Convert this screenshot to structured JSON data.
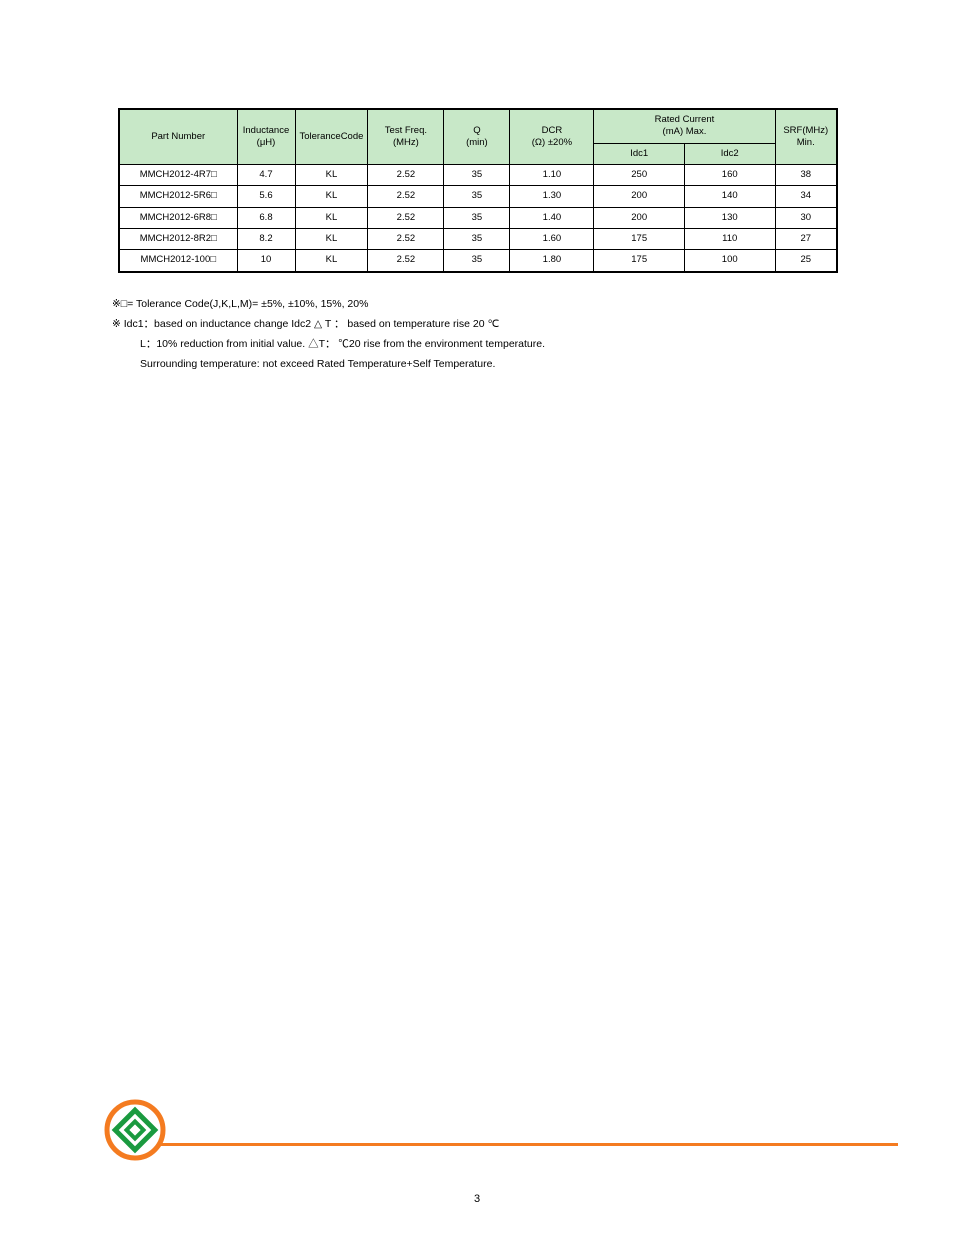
{
  "table": {
    "header": {
      "c0": "Part Number",
      "c1": "Inductance\n(μH)",
      "c2": "ToleranceCode",
      "c3": "Test Freq.\n(MHz)",
      "c4": "Q\n(min)",
      "c5": "DCR\n(Ω) ±20%",
      "c6_top": "Rated Current\n(mA) Max.",
      "c6a": "Idc1",
      "c6b": "Idc2",
      "c7": "SRF(MHz)\nMin."
    },
    "rows": [
      {
        "pn": "MMCH2012-4R7□",
        "ind": "4.7",
        "tol": "KL",
        "freq": "2.52",
        "q": "35",
        "dcr": "1.10",
        "idc1": "250",
        "idc2": "160",
        "srf": "38"
      },
      {
        "pn": "MMCH2012-5R6□",
        "ind": "5.6",
        "tol": "KL",
        "freq": "2.52",
        "q": "35",
        "dcr": "1.30",
        "idc1": "200",
        "idc2": "140",
        "srf": "34"
      },
      {
        "pn": "MMCH2012-6R8□",
        "ind": "6.8",
        "tol": "KL",
        "freq": "2.52",
        "q": "35",
        "dcr": "1.40",
        "idc1": "200",
        "idc2": "130",
        "srf": "30"
      },
      {
        "pn": "MMCH2012-8R2□",
        "ind": "8.2",
        "tol": "KL",
        "freq": "2.52",
        "q": "35",
        "dcr": "1.60",
        "idc1": "175",
        "idc2": "110",
        "srf": "27"
      },
      {
        "pn": "MMCH2012-100□",
        "ind": "10",
        "tol": "KL",
        "freq": "2.52",
        "q": "35",
        "dcr": "1.80",
        "idc1": "175",
        "idc2": "100",
        "srf": "25"
      }
    ]
  },
  "notes": {
    "l1": "※□= Tolerance Code(J,K,L,M)= ±5%, ±10%, 15%, 20%",
    "l2a": "※ Idc1：based on inductance change  Idc2    △ T     ： based on temperature rise 20 ℃",
    "l2b": "L：10% reduction from initial value.      △T：  ℃20 rise from the environment temperature.",
    "l2c": "Surrounding temperature: not exceed Rated Temperature+Self Temperature."
  },
  "page_number": "3",
  "colors": {
    "header_bg": "#c8e8c8",
    "rule": "#f47b20",
    "logo_orange": "#f47b20",
    "logo_green": "#1a9a3f"
  }
}
